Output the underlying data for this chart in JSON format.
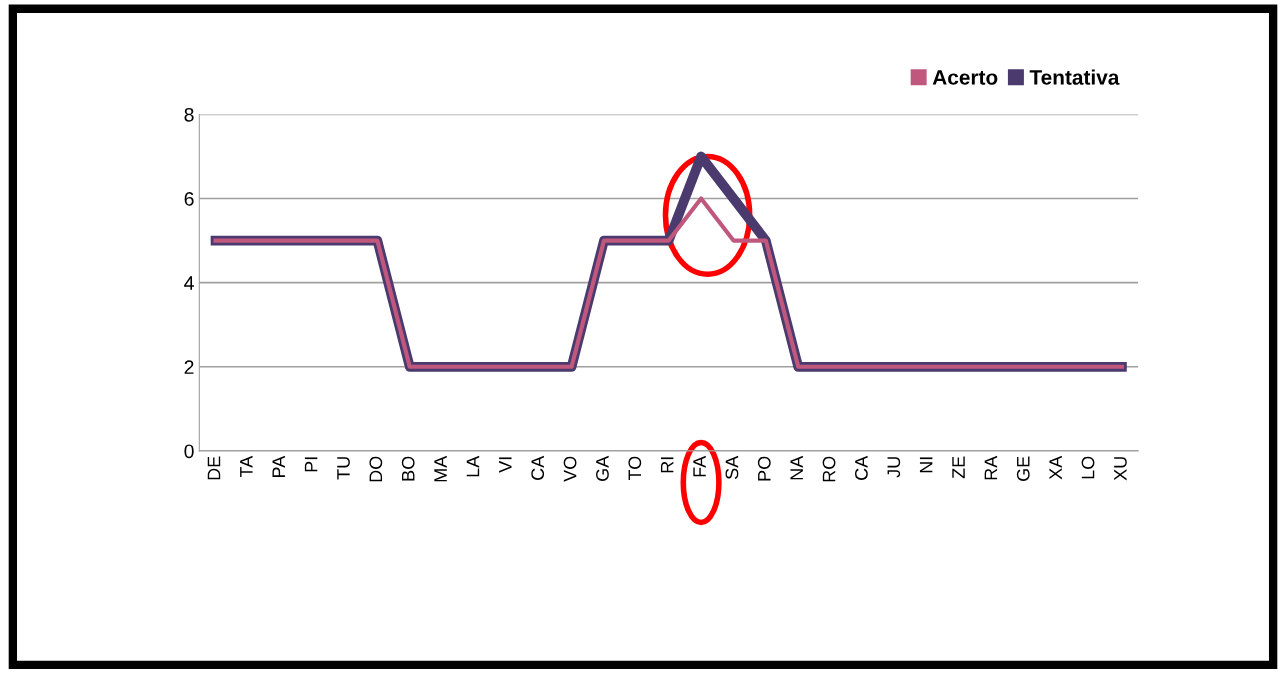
{
  "chart_data": {
    "type": "line",
    "categories": [
      "DE",
      "TA",
      "PA",
      "PI",
      "TU",
      "DO",
      "BO",
      "MA",
      "LA",
      "VI",
      "CA",
      "VO",
      "GA",
      "TO",
      "RI",
      "FA",
      "SA",
      "PO",
      "NA",
      "RO",
      "CA",
      "JU",
      "NI",
      "ZE",
      "RA",
      "GE",
      "XA",
      "LO",
      "XU"
    ],
    "series": [
      {
        "name": "Acerto",
        "color": "#c0587e",
        "values": [
          5,
          5,
          5,
          5,
          5,
          5,
          2,
          2,
          2,
          2,
          2,
          2,
          5,
          5,
          5,
          6,
          5,
          5,
          2,
          2,
          2,
          2,
          2,
          2,
          2,
          2,
          2,
          2,
          2
        ]
      },
      {
        "name": "Tentativa",
        "color": "#4b3a6e",
        "values": [
          5,
          5,
          5,
          5,
          5,
          5,
          2,
          2,
          2,
          2,
          2,
          2,
          5,
          5,
          5,
          7,
          6,
          5,
          2,
          2,
          2,
          2,
          2,
          2,
          2,
          2,
          2,
          2,
          2
        ]
      }
    ],
    "ylim": [
      0,
      8
    ],
    "yticks": [
      0,
      2,
      4,
      6,
      8
    ],
    "grid": "y",
    "legend": "top right",
    "marker": "none",
    "line_style": "solid"
  }
}
